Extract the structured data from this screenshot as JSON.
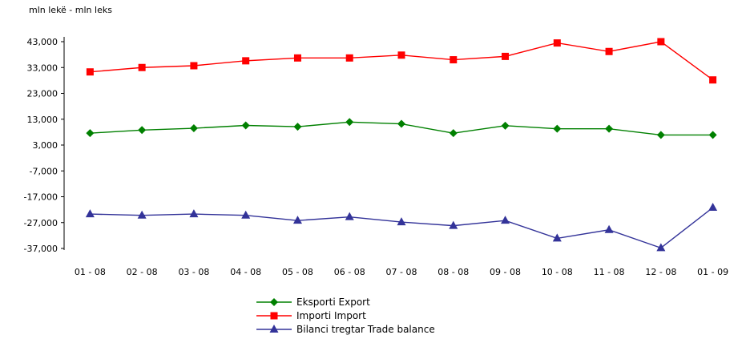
{
  "chart_data": {
    "type": "line",
    "unit_label": "mln lekë - mln leks",
    "categories": [
      "01 - 08",
      "02 - 08",
      "03 - 08",
      "04 - 08",
      "05 - 08",
      "06 - 08",
      "07 - 08",
      "08 - 08",
      "09 - 08",
      "10 - 08",
      "11 - 08",
      "12 - 08",
      "01 - 09"
    ],
    "yticks": [
      43000,
      33000,
      23000,
      13000,
      3000,
      -7000,
      -17000,
      -27000,
      -37000
    ],
    "ytick_labels": [
      "43,000",
      "33,000",
      "23,000",
      "13,000",
      "3,000",
      "-7,000",
      "-17,000",
      "-27,000",
      "-37,000"
    ],
    "ylim": [
      -37000,
      43000
    ],
    "grid": false,
    "legend_position": "bottom-center",
    "series": [
      {
        "name": "Eksporti Export",
        "color": "#008000",
        "marker": "diamond",
        "values": [
          7600,
          8800,
          9500,
          10600,
          10100,
          11900,
          11200,
          7600,
          10500,
          9300,
          9300,
          6900,
          6900
        ]
      },
      {
        "name": "Importi Import",
        "color": "#ff0000",
        "marker": "square",
        "values": [
          31300,
          33000,
          33700,
          35600,
          36700,
          36700,
          37800,
          36000,
          37300,
          42500,
          39200,
          43000,
          28200
        ]
      },
      {
        "name": "Bilanci tregtar Trade balance",
        "color": "#333399",
        "marker": "triangle",
        "values": [
          -23700,
          -24200,
          -23700,
          -24200,
          -26200,
          -24800,
          -26800,
          -28200,
          -26200,
          -33100,
          -29800,
          -36800,
          -21200
        ]
      }
    ]
  }
}
